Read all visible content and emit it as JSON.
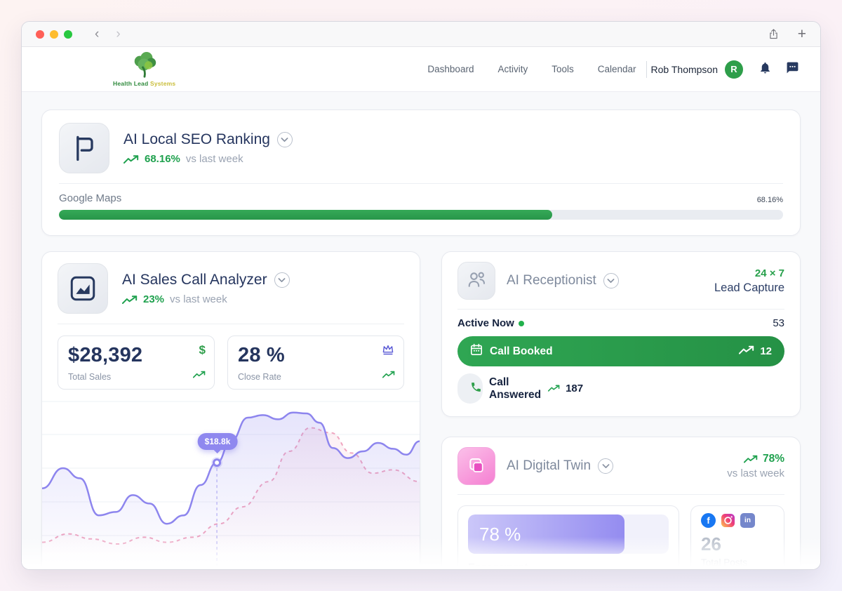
{
  "header": {
    "brand": {
      "line1": "Health Lead",
      "line2": "Systems"
    },
    "nav": [
      {
        "label": "Dashboard"
      },
      {
        "label": "Activity"
      },
      {
        "label": "Tools"
      },
      {
        "label": "Calendar"
      }
    ],
    "user_name": "Rob Thompson",
    "avatar_initial": "R"
  },
  "seo": {
    "title": "AI Local SEO Ranking",
    "trend_value": "68.16%",
    "trend_suffix": "vs last week",
    "row_label": "Google Maps",
    "row_value": "68.16%",
    "progress_pct": 68.16
  },
  "sales": {
    "title": "AI Sales Call Analyzer",
    "trend_value": "23%",
    "trend_suffix": "vs last week",
    "stats": [
      {
        "value": "$28,392",
        "label": "Total Sales",
        "icon": "dollar-icon"
      },
      {
        "value": "28 %",
        "label": "Close Rate",
        "icon": "crown-icon"
      }
    ],
    "dollar_glyph": "$"
  },
  "receptionist": {
    "title": "AI Receptionist",
    "badge_top": "24 × 7",
    "badge_bottom": "Lead Capture",
    "active_label": "Active Now",
    "active_value": "53",
    "booked_label": "Call Booked",
    "booked_value": "12",
    "answered_label": "Call Answered",
    "answered_value": "187"
  },
  "twin": {
    "title": "AI Digital Twin",
    "trend_value": "78%",
    "trend_suffix": "vs last week",
    "engagement_value": "78 %",
    "engagement_pct": 78,
    "engagement_label": "Engagement",
    "posts_value": "26",
    "posts_label": "Total Posts",
    "linkedin_glyph": "in",
    "facebook_glyph": "f"
  },
  "chart_data": {
    "type": "area",
    "title": "",
    "axes_labeled": false,
    "grid": true,
    "legend": false,
    "annotation": {
      "label": "$18.8k",
      "x": 0.463,
      "y": 0.367
    },
    "series": [
      {
        "name": "secondary",
        "color": "#f0a6c0",
        "style": "dashed",
        "points": [
          [
            0,
            0.84
          ],
          [
            0.07,
            0.79
          ],
          [
            0.13,
            0.82
          ],
          [
            0.2,
            0.85
          ],
          [
            0.27,
            0.81
          ],
          [
            0.33,
            0.84
          ],
          [
            0.4,
            0.81
          ],
          [
            0.47,
            0.73
          ],
          [
            0.53,
            0.63
          ],
          [
            0.6,
            0.48
          ],
          [
            0.655,
            0.3
          ],
          [
            0.71,
            0.16
          ],
          [
            0.765,
            0.19
          ],
          [
            0.82,
            0.31
          ],
          [
            0.875,
            0.43
          ],
          [
            0.93,
            0.41
          ],
          [
            1,
            0.48
          ]
        ]
      },
      {
        "name": "primary",
        "color": "#8d85ee",
        "style": "solid",
        "points": [
          [
            0,
            0.52
          ],
          [
            0.055,
            0.4
          ],
          [
            0.1,
            0.46
          ],
          [
            0.15,
            0.68
          ],
          [
            0.195,
            0.66
          ],
          [
            0.24,
            0.56
          ],
          [
            0.285,
            0.61
          ],
          [
            0.33,
            0.73
          ],
          [
            0.375,
            0.68
          ],
          [
            0.42,
            0.5
          ],
          [
            0.463,
            0.367
          ],
          [
            0.5,
            0.24
          ],
          [
            0.545,
            0.1
          ],
          [
            0.585,
            0.085
          ],
          [
            0.625,
            0.11
          ],
          [
            0.665,
            0.07
          ],
          [
            0.7,
            0.075
          ],
          [
            0.735,
            0.13
          ],
          [
            0.77,
            0.28
          ],
          [
            0.81,
            0.34
          ],
          [
            0.85,
            0.3
          ],
          [
            0.89,
            0.25
          ],
          [
            0.93,
            0.285
          ],
          [
            0.965,
            0.32
          ],
          [
            1,
            0.24
          ]
        ]
      }
    ]
  }
}
